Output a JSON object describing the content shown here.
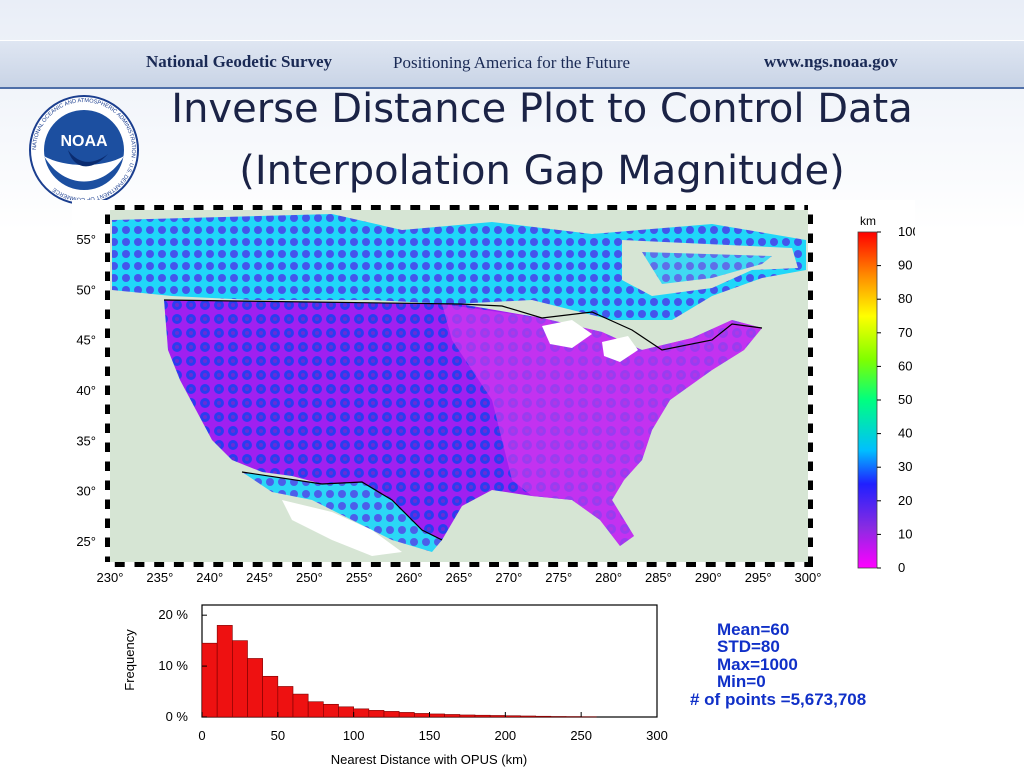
{
  "banner": {
    "agency": "National Geodetic Survey",
    "tagline": "Positioning America for the Future",
    "url": "www.ngs.noaa.gov"
  },
  "logo": {
    "text": "NOAA",
    "ring_text": "NATIONAL OCEANIC AND ATMOSPHERIC ADMINISTRATION · U.S. DEPARTMENT OF COMMERCE"
  },
  "title": {
    "line1": "Inverse Distance Plot to Control Data",
    "line2": "(Interpolation Gap Magnitude)"
  },
  "colors": {
    "navy": "#1b2346",
    "banner_text": "#1a2a55",
    "stats_blue": "#1030c8",
    "bar_red": "#ee1111",
    "land": "#d6e5d4"
  },
  "chart_data": [
    {
      "type": "heatmap",
      "x_ticks": [
        "230°",
        "235°",
        "240°",
        "245°",
        "250°",
        "255°",
        "260°",
        "265°",
        "270°",
        "275°",
        "280°",
        "285°",
        "290°",
        "295°",
        "300°"
      ],
      "y_ticks": [
        "25°",
        "30°",
        "35°",
        "40°",
        "45°",
        "50°",
        "55°"
      ],
      "xlim": [
        230,
        300
      ],
      "ylim": [
        23,
        58
      ],
      "colorbar": {
        "unit": "km",
        "range": [
          0,
          100
        ],
        "ticks": [
          "0",
          "10",
          "20",
          "30",
          "40",
          "50",
          "60",
          "70",
          "80",
          "90",
          "100"
        ],
        "colors": [
          "#ff00ff",
          "#8a2be2",
          "#2020ff",
          "#00bfff",
          "#00ff80",
          "#7fff00",
          "#ffff00",
          "#ff8c00",
          "#ff0000"
        ]
      }
    },
    {
      "type": "bar",
      "bin_width": 10,
      "bin_starts": [
        0,
        10,
        20,
        30,
        40,
        50,
        60,
        70,
        80,
        90,
        100,
        110,
        120,
        130,
        140,
        150,
        160,
        170,
        180,
        190,
        200,
        210,
        220,
        230,
        240,
        250,
        260,
        270,
        280,
        290
      ],
      "values": [
        14.5,
        18,
        15,
        11.5,
        8,
        6,
        4.5,
        3,
        2.5,
        2,
        1.6,
        1.3,
        1.1,
        0.9,
        0.7,
        0.6,
        0.5,
        0.4,
        0.35,
        0.3,
        0.25,
        0.2,
        0.15,
        0.1,
        0.08,
        0.05,
        0,
        0,
        0,
        0
      ],
      "xlim": [
        0,
        300
      ],
      "ylim": [
        0,
        22
      ],
      "x_ticks": [
        "0",
        "50",
        "100",
        "150",
        "200",
        "250",
        "300"
      ],
      "y_ticks": [
        "0 %",
        "10 %",
        "20 %"
      ],
      "xlabel": "Nearest Distance with OPUS (km)",
      "ylabel": "Frequency"
    }
  ],
  "stats": {
    "mean": "Mean=60",
    "std": "STD=80",
    "max": "Max=1000",
    "min": "Min=0",
    "points": "# of points =5,673,708"
  }
}
